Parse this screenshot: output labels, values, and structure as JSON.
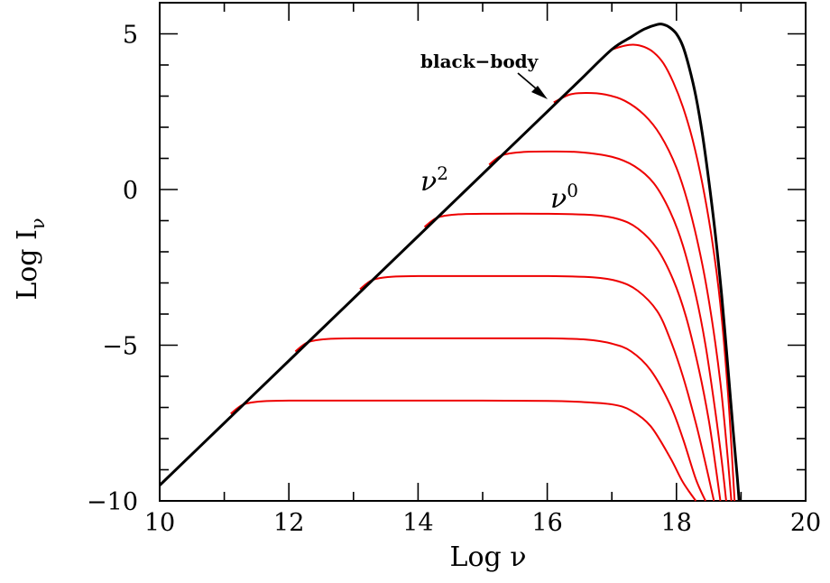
{
  "chart_data": {
    "type": "line",
    "xlabel": "Log ν",
    "ylabel": "Log I",
    "ylabel_subscript": "ν",
    "xlim": [
      10,
      20
    ],
    "ylim": [
      -10,
      6
    ],
    "x_ticks": [
      10,
      12,
      14,
      16,
      18,
      20
    ],
    "x_tick_labels": [
      "10",
      "12",
      "14",
      "16",
      "18",
      "20"
    ],
    "y_ticks": [
      -10,
      -5,
      0,
      5
    ],
    "y_tick_labels": [
      "−10",
      "−5",
      "0",
      "5"
    ],
    "grid": false,
    "legend": "none",
    "annotations": {
      "black_body": "black−body",
      "nu2_base": "ν",
      "nu2_exp": "2",
      "nu0_base": "ν",
      "nu0_exp": "0"
    },
    "series": [
      {
        "color": "#000000",
        "role": "black-body",
        "x": [
          10,
          11,
          12,
          13,
          14,
          15,
          16,
          16.5,
          17,
          17.3,
          17.5,
          17.7,
          17.8,
          17.9,
          18.0,
          18.1,
          18.2,
          18.3,
          18.4,
          18.5,
          18.6,
          18.7,
          18.8,
          18.88,
          18.94,
          18.97
        ],
        "y": [
          -9.5,
          -7.5,
          -5.5,
          -3.5,
          -1.5,
          0.5,
          2.5,
          3.5,
          4.5,
          4.9,
          5.15,
          5.3,
          5.3,
          5.2,
          5.0,
          4.6,
          3.9,
          3.0,
          1.8,
          0.3,
          -1.4,
          -3.4,
          -5.8,
          -7.8,
          -9.2,
          -10.0
        ]
      },
      {
        "color": "#ee0000",
        "x": [
          11.1,
          11.3,
          11.6,
          12,
          13,
          14,
          15,
          16,
          16.5,
          17,
          17.3,
          17.6,
          17.9,
          18.1,
          18.3
        ],
        "y": [
          -7.2,
          -6.9,
          -6.8,
          -6.78,
          -6.78,
          -6.78,
          -6.78,
          -6.79,
          -6.82,
          -6.9,
          -7.1,
          -7.6,
          -8.6,
          -9.4,
          -10.0
        ]
      },
      {
        "color": "#ee0000",
        "x": [
          12.1,
          12.3,
          12.6,
          13,
          14,
          15,
          16,
          16.6,
          17,
          17.3,
          17.6,
          17.9,
          18.1,
          18.3,
          18.45
        ],
        "y": [
          -5.2,
          -4.9,
          -4.8,
          -4.78,
          -4.78,
          -4.78,
          -4.78,
          -4.82,
          -4.95,
          -5.2,
          -5.8,
          -6.9,
          -8.0,
          -9.3,
          -10.0
        ]
      },
      {
        "color": "#ee0000",
        "x": [
          13.1,
          13.3,
          13.6,
          14,
          15,
          16,
          16.7,
          17.1,
          17.4,
          17.7,
          17.9,
          18.1,
          18.3,
          18.45,
          18.58
        ],
        "y": [
          -3.2,
          -2.9,
          -2.8,
          -2.78,
          -2.78,
          -2.78,
          -2.82,
          -2.95,
          -3.25,
          -3.9,
          -4.8,
          -6.0,
          -7.5,
          -8.8,
          -10.0
        ]
      },
      {
        "color": "#ee0000",
        "x": [
          14.1,
          14.3,
          14.6,
          15,
          16,
          16.7,
          17.1,
          17.4,
          17.7,
          17.95,
          18.15,
          18.35,
          18.5,
          18.6,
          18.68
        ],
        "y": [
          -1.2,
          -0.9,
          -0.8,
          -0.78,
          -0.78,
          -0.82,
          -0.95,
          -1.25,
          -1.9,
          -2.9,
          -4.1,
          -5.8,
          -7.4,
          -8.8,
          -10.0
        ]
      },
      {
        "color": "#ee0000",
        "x": [
          15.1,
          15.3,
          15.6,
          16,
          16.5,
          17,
          17.35,
          17.65,
          17.9,
          18.1,
          18.3,
          18.45,
          18.6,
          18.7,
          18.77
        ],
        "y": [
          0.8,
          1.1,
          1.2,
          1.22,
          1.2,
          1.05,
          0.75,
          0.2,
          -0.7,
          -1.8,
          -3.4,
          -5.0,
          -7.1,
          -8.7,
          -10.0
        ]
      },
      {
        "color": "#ee0000",
        "x": [
          16.1,
          16.35,
          16.6,
          16.9,
          17.2,
          17.5,
          17.75,
          18.0,
          18.2,
          18.4,
          18.55,
          18.68,
          18.78,
          18.85
        ],
        "y": [
          2.8,
          3.05,
          3.1,
          3.05,
          2.85,
          2.4,
          1.75,
          0.7,
          -0.6,
          -2.4,
          -4.2,
          -6.2,
          -8.3,
          -10.0
        ]
      },
      {
        "color": "#ee0000",
        "x": [
          17.0,
          17.2,
          17.35,
          17.5,
          17.65,
          17.8,
          17.95,
          18.1,
          18.25,
          18.4,
          18.55,
          18.68,
          18.8,
          18.9
        ],
        "y": [
          4.5,
          4.62,
          4.65,
          4.58,
          4.4,
          4.05,
          3.45,
          2.65,
          1.6,
          0.2,
          -1.6,
          -3.7,
          -6.6,
          -10.0
        ]
      }
    ]
  }
}
